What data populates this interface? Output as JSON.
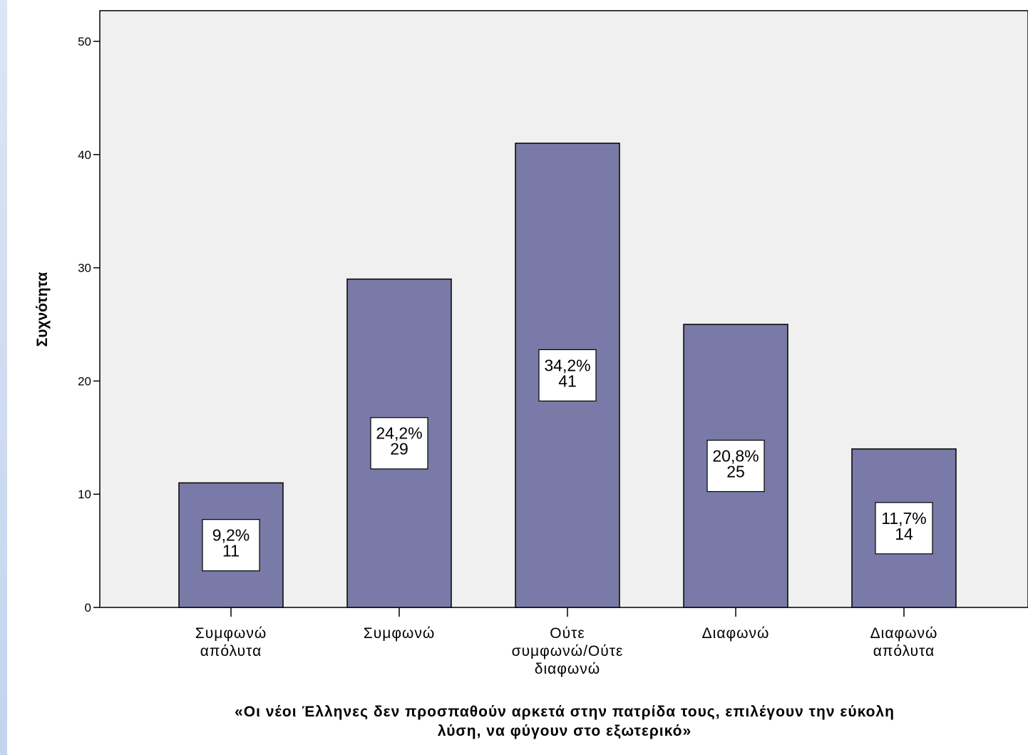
{
  "chart_data": {
    "type": "bar",
    "categories": [
      [
        "Συμφωνώ",
        "απόλυτα"
      ],
      [
        "Συμφωνώ"
      ],
      [
        "Ούτε",
        "συμφωνώ/Ούτε",
        "διαφωνώ"
      ],
      [
        "Διαφωνώ"
      ],
      [
        "Διαφωνώ",
        "απόλυτα"
      ]
    ],
    "values": [
      11,
      29,
      41,
      25,
      14
    ],
    "percent_labels": [
      "9,2%",
      "24,2%",
      "34,2%",
      "20,8%",
      "11,7%"
    ],
    "count_labels": [
      "11",
      "29",
      "41",
      "25",
      "14"
    ],
    "ylabel": "Συχνότητα",
    "xlabel": [
      "«Οι νέοι Έλληνες δεν προσπαθούν αρκετά στην πατρίδα τους, επιλέγουν την εύκολη",
      "λύση, να φύγουν στο εξωτερικό»"
    ],
    "ylim": [
      0,
      50
    ],
    "yticks": [
      0,
      10,
      20,
      30,
      40,
      50
    ],
    "grid": false,
    "colors": {
      "bar": "#7a7aa8",
      "plot_background": "#f0f0f0",
      "label_box": "#ffffff"
    }
  }
}
